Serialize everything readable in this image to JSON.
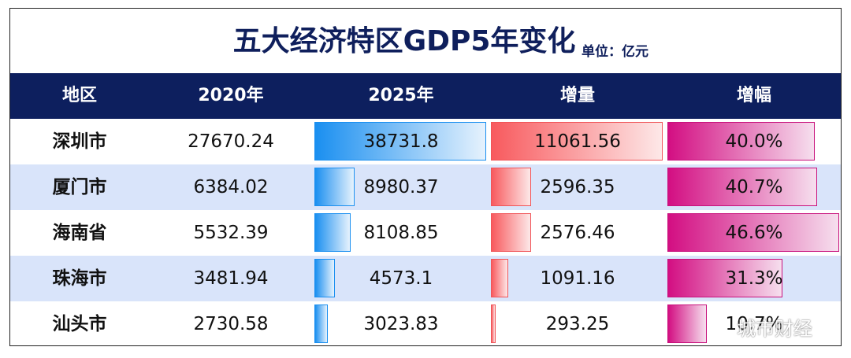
{
  "title": "五大经济特区GDP5年变化",
  "unit_label": "单位：亿元",
  "watermark": "城市财经",
  "columns": [
    "地区",
    "2020年",
    "2025年",
    "增量",
    "增幅"
  ],
  "colors": {
    "header_bg": "#0d1f5e",
    "title": "#0f1f5c",
    "band": "#d9e4fa",
    "blue": "#1a8ff0",
    "red": "#f85a5e",
    "pink": "#d30e82"
  },
  "chart_data": {
    "type": "table",
    "title": "五大经济特区GDP5年变化",
    "unit": "单位：亿元",
    "columns": [
      "地区",
      "2020年",
      "2025年",
      "增量",
      "增幅"
    ],
    "rows": [
      {
        "region": "深圳市",
        "gdp2020": "27670.24",
        "gdp2025": "38731.8",
        "increase": "11061.56",
        "growth": "40.0%"
      },
      {
        "region": "厦门市",
        "gdp2020": "6384.02",
        "gdp2025": "8980.37",
        "increase": "2596.35",
        "growth": "40.7%"
      },
      {
        "region": "海南省",
        "gdp2020": "5532.39",
        "gdp2025": "8108.85",
        "increase": "2576.46",
        "growth": "46.6%"
      },
      {
        "region": "珠海市",
        "gdp2020": "3481.94",
        "gdp2025": "4573.1",
        "increase": "1091.16",
        "growth": "31.3%"
      },
      {
        "region": "汕头市",
        "gdp2020": "2730.58",
        "gdp2025": "3023.83",
        "increase": "293.25",
        "growth": "10.7%"
      }
    ]
  }
}
